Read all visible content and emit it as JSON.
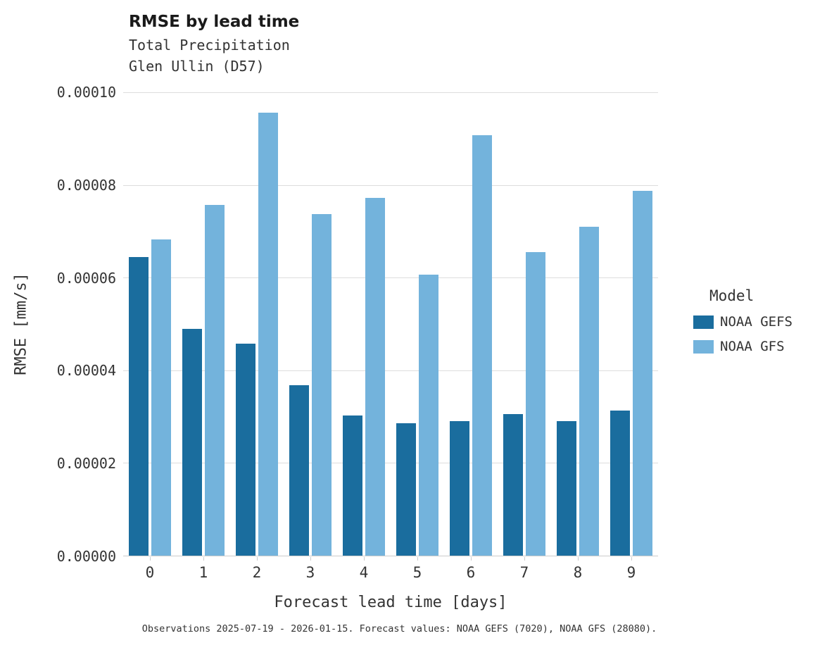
{
  "header": {
    "title": "RMSE by lead time",
    "subtitle1": "Total Precipitation",
    "subtitle2": "Glen Ullin (D57)"
  },
  "chart_data": {
    "type": "bar",
    "title": "RMSE by lead time",
    "subtitle": [
      "Total Precipitation",
      "Glen Ullin (D57)"
    ],
    "xlabel": "Forecast lead time [days]",
    "ylabel": "RMSE [mm/s]",
    "categories": [
      "0",
      "1",
      "2",
      "3",
      "4",
      "5",
      "6",
      "7",
      "8",
      "9"
    ],
    "series": [
      {
        "name": "NOAA GEFS",
        "color": "#1a6d9e",
        "values": [
          6.45e-05,
          4.9e-05,
          4.58e-05,
          3.68e-05,
          3.02e-05,
          2.85e-05,
          2.9e-05,
          3.05e-05,
          2.91e-05,
          3.13e-05
        ]
      },
      {
        "name": "NOAA GFS",
        "color": "#73b3dc",
        "values": [
          6.83e-05,
          7.57e-05,
          9.56e-05,
          7.37e-05,
          7.72e-05,
          6.06e-05,
          9.07e-05,
          6.55e-05,
          7.1e-05,
          7.88e-05
        ]
      }
    ],
    "ylim": [
      0,
      0.0001
    ],
    "yticks": [
      0,
      2e-05,
      4e-05,
      6e-05,
      8e-05,
      0.0001
    ],
    "ytick_labels": [
      "0.00000",
      "0.00002",
      "0.00004",
      "0.00006",
      "0.00008",
      "0.00010"
    ],
    "grid": true,
    "legend": {
      "title": "Model",
      "position": "right"
    }
  },
  "footer": {
    "caption": "Observations 2025-07-19 - 2026-01-15. Forecast values: NOAA GEFS (7020), NOAA GFS (28080)."
  }
}
